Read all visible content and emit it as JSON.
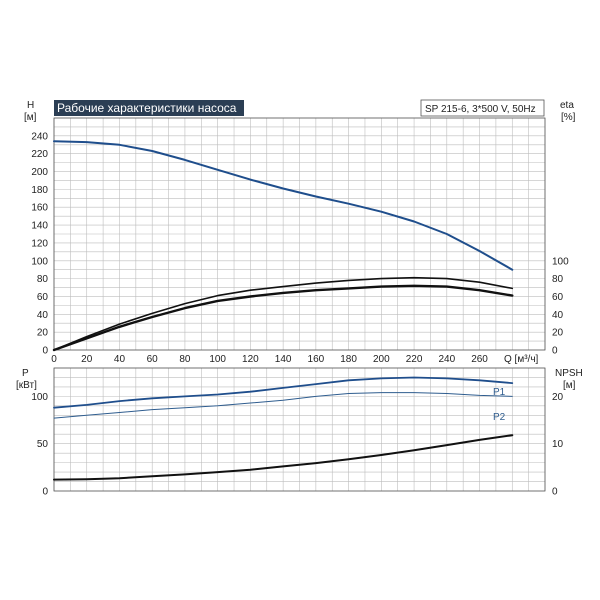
{
  "chart_data": [
    {
      "type": "line",
      "title": "Рабочие характеристики насоса",
      "info": "SP 215-6, 3*500 V, 50Hz",
      "left_axis": {
        "label": "H",
        "unit": "[м]",
        "ticks": [
          "0",
          "20",
          "40",
          "60",
          "80",
          "100",
          "120",
          "140",
          "160",
          "180",
          "200",
          "220",
          "240"
        ],
        "ylim": [
          0,
          260
        ]
      },
      "right_axis": {
        "label": "eta",
        "unit": "[%]",
        "ticks": [
          "0",
          "20",
          "40",
          "60",
          "80",
          "100"
        ],
        "ylim": [
          0,
          260
        ]
      },
      "x_axis": {
        "label": "Q [м³/ч]",
        "ticks": [
          "0",
          "20",
          "40",
          "60",
          "80",
          "100",
          "120",
          "140",
          "160",
          "180",
          "200",
          "220",
          "240",
          "260"
        ],
        "xlim": [
          0,
          300
        ]
      },
      "grid": true,
      "series": [
        {
          "axis": "left",
          "color": "#1f4e8c",
          "width": 2,
          "x": [
            0,
            20,
            40,
            60,
            80,
            100,
            120,
            140,
            160,
            180,
            200,
            220,
            240,
            260,
            280
          ],
          "y": [
            234,
            233,
            230,
            223,
            213,
            202,
            191,
            181,
            172,
            164,
            155,
            144,
            130,
            111,
            90
          ]
        },
        {
          "axis": "right",
          "color": "#111111",
          "width": 1.6,
          "x": [
            0,
            20,
            40,
            60,
            80,
            100,
            120,
            140,
            160,
            180,
            200,
            220,
            240,
            260,
            280
          ],
          "y": [
            0,
            15,
            29,
            41,
            52,
            61,
            67,
            71,
            75,
            78,
            80,
            81,
            80,
            76,
            69
          ]
        },
        {
          "axis": "right",
          "color": "#111111",
          "width": 2.4,
          "x": [
            0,
            20,
            40,
            60,
            80,
            100,
            120,
            140,
            160,
            180,
            200,
            220,
            240,
            260,
            280
          ],
          "y": [
            0,
            13,
            26,
            37,
            47,
            55,
            60,
            64,
            67,
            69,
            71,
            72,
            71,
            67,
            61
          ]
        }
      ]
    },
    {
      "type": "line",
      "left_axis": {
        "label": "P",
        "unit": "[кВт]",
        "ticks": [
          "0",
          "50",
          "100"
        ],
        "ylim": [
          0,
          130
        ]
      },
      "right_axis": {
        "label": "NPSH",
        "unit": "[м]",
        "ticks": [
          "0",
          "10",
          "20"
        ],
        "ylim": [
          0,
          26
        ]
      },
      "x_axis": {
        "xlim": [
          0,
          300
        ]
      },
      "grid": true,
      "series": [
        {
          "name": "P1",
          "axis": "left",
          "color": "#1f4e8c",
          "width": 1.8,
          "x": [
            0,
            20,
            40,
            60,
            80,
            100,
            120,
            140,
            160,
            180,
            200,
            220,
            240,
            260,
            280
          ],
          "y": [
            88,
            91,
            95,
            98,
            100,
            102,
            105,
            109,
            113,
            117,
            119,
            120,
            119,
            117,
            114
          ]
        },
        {
          "name": "P2",
          "axis": "left",
          "color": "#2f5d8f",
          "width": 1,
          "x": [
            0,
            20,
            40,
            60,
            80,
            100,
            120,
            140,
            160,
            180,
            200,
            220,
            240,
            260,
            280
          ],
          "y": [
            77,
            80,
            83,
            86,
            88,
            90,
            93,
            96,
            100,
            103,
            104,
            104,
            103,
            101,
            100
          ]
        },
        {
          "axis": "right",
          "color": "#111111",
          "width": 2,
          "x": [
            0,
            20,
            40,
            60,
            80,
            100,
            120,
            140,
            160,
            180,
            200,
            220,
            240,
            260,
            280
          ],
          "y": [
            2.4,
            2.5,
            2.7,
            3.1,
            3.5,
            4.0,
            4.5,
            5.2,
            5.9,
            6.7,
            7.6,
            8.6,
            9.7,
            10.8,
            11.8
          ]
        }
      ]
    }
  ]
}
